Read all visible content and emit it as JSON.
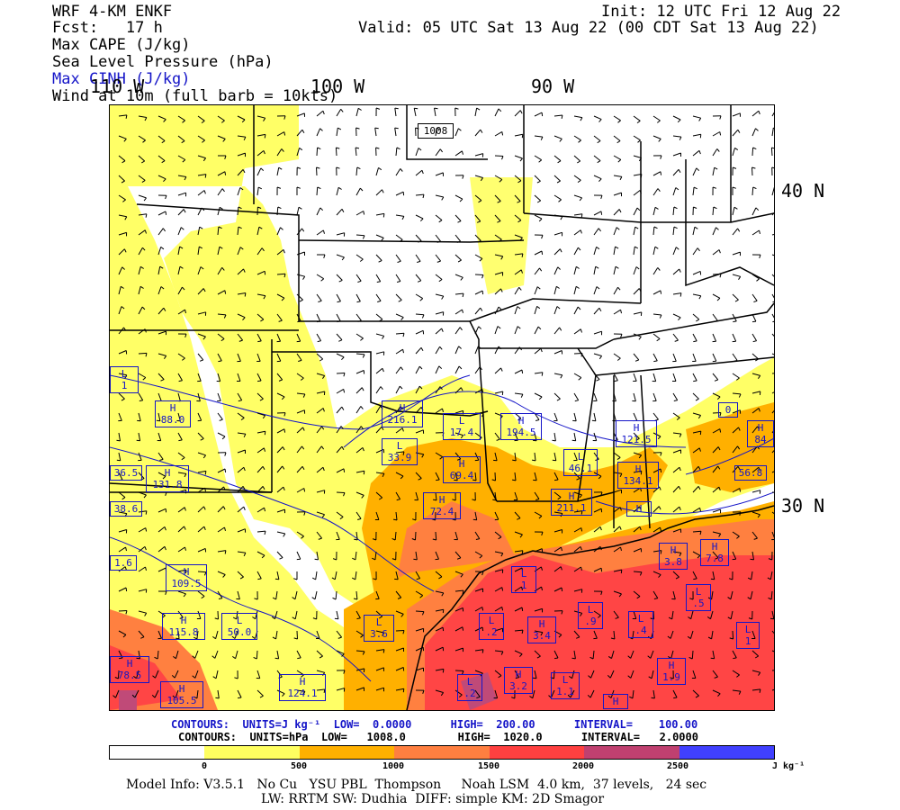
{
  "header": {
    "model": "WRF 4-KM ENKF",
    "init": "Init: 12 UTC Fri 12 Aug 22",
    "fcst": "Fcst:   17 h",
    "valid": "Valid: 05 UTC Sat 13 Aug 22 (00 CDT Sat 13 Aug 22)",
    "line1": "Max CAPE (J/kg)",
    "line2": "Sea Level Pressure (hPa)",
    "line3": "Max CINH (J/kg)",
    "line4": "Wind at 10m (full barb = 10kts)"
  },
  "map": {
    "lon_labels": [
      "110 W",
      "100 W",
      "90 W"
    ],
    "lat_labels": [
      "40 N",
      "30 N"
    ],
    "pressure_label": "1008",
    "markers": [
      {
        "t": "L",
        "v": "1"
      },
      {
        "t": "H",
        "v": "88.0"
      },
      {
        "t": "H",
        "v": "131.8"
      },
      {
        "t": "",
        "v": "36.5"
      },
      {
        "t": "",
        "v": "38.6"
      },
      {
        "t": "",
        "v": "1.6"
      },
      {
        "t": "H",
        "v": "109.5"
      },
      {
        "t": "H",
        "v": "115.8"
      },
      {
        "t": "L",
        "v": "50.0"
      },
      {
        "t": "H",
        "v": "78.5"
      },
      {
        "t": "H",
        "v": "105.5"
      },
      {
        "t": "H",
        "v": "124.1"
      },
      {
        "t": "L",
        "v": "3.6"
      },
      {
        "t": "H",
        "v": "216.1"
      },
      {
        "t": "L",
        "v": "33.9"
      },
      {
        "t": "L",
        "v": "17.4"
      },
      {
        "t": "H",
        "v": "69.4"
      },
      {
        "t": "H",
        "v": "72.4"
      },
      {
        "t": "H",
        "v": "194.5"
      },
      {
        "t": "L",
        "v": "46.1"
      },
      {
        "t": "H",
        "v": "211.1"
      },
      {
        "t": "H",
        "v": "121.5"
      },
      {
        "t": "H",
        "v": "134.1"
      },
      {
        "t": "H",
        "v": ""
      },
      {
        "t": "H",
        "v": "84"
      },
      {
        "t": "",
        "v": "56.8"
      },
      {
        "t": "",
        "v": "0"
      },
      {
        "t": "L",
        "v": "1"
      },
      {
        "t": "L",
        "v": ".2"
      },
      {
        "t": "H",
        "v": "3.4"
      },
      {
        "t": "L",
        "v": ".9"
      },
      {
        "t": "L",
        "v": ".4"
      },
      {
        "t": "L",
        "v": ".5"
      },
      {
        "t": "H",
        "v": "3.8"
      },
      {
        "t": "H",
        "v": "7.8"
      },
      {
        "t": "L",
        "v": "1"
      },
      {
        "t": "L",
        "v": ".2"
      },
      {
        "t": "H",
        "v": "3.2"
      },
      {
        "t": "L",
        "v": "1.1"
      },
      {
        "t": "H",
        "v": "1.9"
      },
      {
        "t": "H",
        "v": ""
      }
    ]
  },
  "contours": {
    "cape": "CONTOURS:  UNITS=J kg⁻¹  LOW=  0.0000      HIGH=  200.00      INTERVAL=    100.00",
    "slp": "CONTOURS:  UNITS=hPa  LOW=   1008.0        HIGH=  1020.0      INTERVAL=   2.0000"
  },
  "colorbar": {
    "colors": [
      "#ffffff",
      "#ffff60",
      "#ffb000",
      "#ff7f40",
      "#ff4040",
      "#c04070",
      "#4040ff"
    ],
    "ticks": [
      "0",
      "500",
      "1000",
      "1500",
      "2000",
      "2500"
    ],
    "unit": "J kg⁻¹"
  },
  "footer": {
    "line1": "Model Info: V3.5.1   No Cu   YSU PBL  Thompson     Noah LSM  4.0 km,  37 levels,   24 sec",
    "line2": "LW: RRTM SW: Dudhia  DIFF: simple KM: 2D Smagor"
  }
}
